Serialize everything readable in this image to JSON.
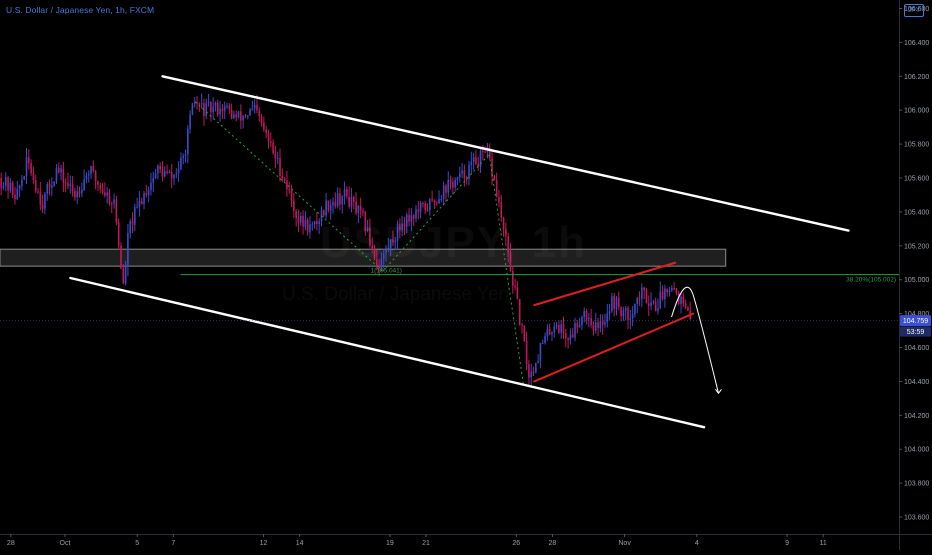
{
  "header": {
    "symbol_description": "U.S. Dollar / Japanese Yen",
    "interval": "1h",
    "exchange": "FXCM",
    "separator": ", ",
    "currency_badge": "JPY"
  },
  "watermark": {
    "ticker": "USDJPY, 1h",
    "description": "U.S. Dollar / Japanese Yen"
  },
  "price_tags": {
    "last_price": "104.759",
    "countdown": "53:59"
  },
  "colors": {
    "background": "#000000",
    "candle_up": "#3a4cc8",
    "candle_down": "#c2185b",
    "trendline": "#ffffff",
    "rising_wedge": "#e02020",
    "fib": "#2e9e3e",
    "zone_fill": "#2a2a2a",
    "axis_text": "#9aa0a6",
    "price_tag_bg": "#3b4fd0"
  },
  "chart_data": {
    "type": "candlestick",
    "xlabel": "",
    "ylabel": "",
    "ylim": [
      103.5,
      106.65
    ],
    "y_ticks": [
      "103.600",
      "103.800",
      "104.000",
      "104.200",
      "104.400",
      "104.600",
      "104.800",
      "105.000",
      "105.200",
      "105.400",
      "105.600",
      "105.800",
      "106.000",
      "106.200",
      "106.400",
      "106.600"
    ],
    "y_tick_values": [
      103.6,
      103.8,
      104.0,
      104.2,
      104.4,
      104.6,
      104.8,
      105.0,
      105.2,
      105.4,
      105.6,
      105.8,
      106.0,
      106.2,
      106.4,
      106.6
    ],
    "x_ticks": [
      "28",
      "Oct",
      "5",
      "7",
      "12",
      "14",
      "19",
      "21",
      "26",
      "28",
      "Nov",
      "4",
      "9",
      "11"
    ],
    "x_tick_times": [
      -3,
      0,
      4,
      6,
      11,
      13,
      18,
      20,
      25,
      27,
      31,
      35,
      40,
      42
    ],
    "xlim": [
      -3.6,
      46.2
    ],
    "price_path": [
      {
        "t": -3.6,
        "p": 105.6
      },
      {
        "t": -2.6,
        "p": 105.5
      },
      {
        "t": -2.0,
        "p": 105.7
      },
      {
        "t": -1.2,
        "p": 105.45
      },
      {
        "t": -0.4,
        "p": 105.65
      },
      {
        "t": 0.6,
        "p": 105.5
      },
      {
        "t": 1.4,
        "p": 105.65
      },
      {
        "t": 2.0,
        "p": 105.55
      },
      {
        "t": 2.8,
        "p": 105.45
      },
      {
        "t": 3.3,
        "p": 104.95
      },
      {
        "t": 3.6,
        "p": 105.3
      },
      {
        "t": 4.4,
        "p": 105.5
      },
      {
        "t": 5.2,
        "p": 105.65
      },
      {
        "t": 6.0,
        "p": 105.6
      },
      {
        "t": 6.6,
        "p": 105.7
      },
      {
        "t": 7.2,
        "p": 106.05
      },
      {
        "t": 7.8,
        "p": 106.0
      },
      {
        "t": 8.8,
        "p": 106.02
      },
      {
        "t": 9.6,
        "p": 105.95
      },
      {
        "t": 10.6,
        "p": 106.0
      },
      {
        "t": 11.4,
        "p": 105.8
      },
      {
        "t": 12.2,
        "p": 105.6
      },
      {
        "t": 13.0,
        "p": 105.35
      },
      {
        "t": 13.8,
        "p": 105.3
      },
      {
        "t": 14.6,
        "p": 105.45
      },
      {
        "t": 15.6,
        "p": 105.5
      },
      {
        "t": 16.6,
        "p": 105.35
      },
      {
        "t": 17.4,
        "p": 105.08
      },
      {
        "t": 18.0,
        "p": 105.2
      },
      {
        "t": 18.8,
        "p": 105.35
      },
      {
        "t": 19.6,
        "p": 105.4
      },
      {
        "t": 20.4,
        "p": 105.45
      },
      {
        "t": 21.2,
        "p": 105.55
      },
      {
        "t": 22.0,
        "p": 105.6
      },
      {
        "t": 22.8,
        "p": 105.7
      },
      {
        "t": 23.5,
        "p": 105.74
      },
      {
        "t": 24.0,
        "p": 105.5
      },
      {
        "t": 24.6,
        "p": 105.15
      },
      {
        "t": 25.2,
        "p": 104.8
      },
      {
        "t": 25.8,
        "p": 104.42
      },
      {
        "t": 26.4,
        "p": 104.6
      },
      {
        "t": 27.2,
        "p": 104.75
      },
      {
        "t": 28.0,
        "p": 104.65
      },
      {
        "t": 28.8,
        "p": 104.82
      },
      {
        "t": 29.6,
        "p": 104.7
      },
      {
        "t": 30.4,
        "p": 104.88
      },
      {
        "t": 31.2,
        "p": 104.78
      },
      {
        "t": 32.0,
        "p": 104.92
      },
      {
        "t": 32.8,
        "p": 104.85
      },
      {
        "t": 33.6,
        "p": 104.99
      },
      {
        "t": 34.2,
        "p": 104.87
      },
      {
        "t": 34.7,
        "p": 104.76
      }
    ],
    "candle_count": 300,
    "zone": {
      "from_t": -3.6,
      "to_t": 36.6,
      "high": 105.18,
      "low": 105.08
    },
    "trendlines": [
      {
        "name": "upper-channel",
        "from": {
          "t": 5.4,
          "p": 106.2
        },
        "to": {
          "t": 43.4,
          "p": 105.29
        }
      },
      {
        "name": "lower-channel",
        "from": {
          "t": 0.3,
          "p": 105.01
        },
        "to": {
          "t": 35.4,
          "p": 104.13
        }
      },
      {
        "name": "wedge-upper",
        "from": {
          "t": 26.0,
          "p": 104.85
        },
        "to": {
          "t": 33.8,
          "p": 105.1
        }
      },
      {
        "name": "wedge-lower",
        "from": {
          "t": 26.0,
          "p": 104.4
        },
        "to": {
          "t": 34.8,
          "p": 104.8
        }
      }
    ],
    "fib_level": {
      "value": 105.03,
      "from_t": 6.4,
      "to_t": 46.2,
      "left_label": "1(105.041)",
      "right_label": "38.20%(105.002)"
    },
    "dotted_path": [
      {
        "t": 7.2,
        "p": 106.05
      },
      {
        "t": 17.6,
        "p": 105.05
      },
      {
        "t": 23.5,
        "p": 105.74
      },
      {
        "t": 25.4,
        "p": 104.38
      }
    ],
    "projection_arrow": {
      "from": {
        "t": 33.6,
        "p": 104.78
      },
      "peak": {
        "t": 34.4,
        "p": 104.93
      },
      "to": {
        "t": 36.2,
        "p": 104.33
      }
    },
    "current_price": 104.759,
    "current_price_label": "104.759",
    "timer_label": "53:59"
  }
}
